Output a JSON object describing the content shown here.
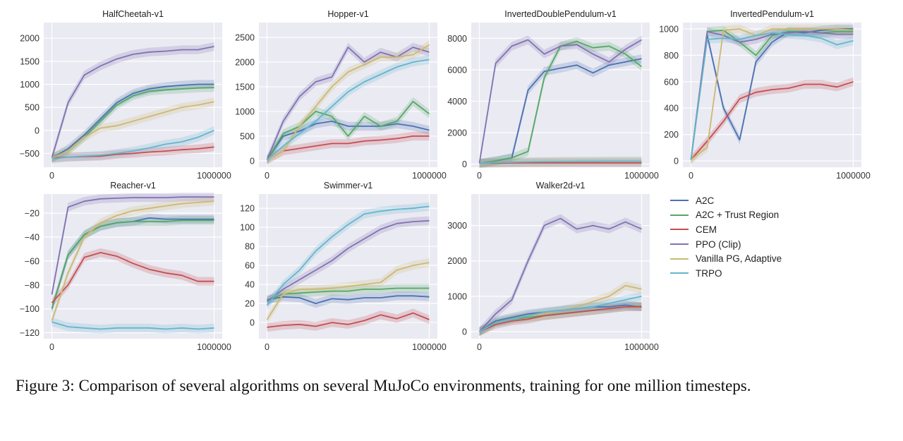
{
  "caption": "Figure 3:  Comparison of several algorithms on several MuJoCo environments, training for one million timesteps.",
  "legend": [
    {
      "name": "A2C",
      "color": "#4c72b0"
    },
    {
      "name": "A2C + Trust Region",
      "color": "#55a868"
    },
    {
      "name": "CEM",
      "color": "#c44e52"
    },
    {
      "name": "PPO (Clip)",
      "color": "#8172b2"
    },
    {
      "name": "Vanilla PG, Adaptive",
      "color": "#ccb974"
    },
    {
      "name": "TRPO",
      "color": "#64b5cd"
    }
  ],
  "chart_data": [
    {
      "type": "line",
      "title": "HalfCheetah-v1",
      "xlim": [
        -50000,
        1050000
      ],
      "ylim": [
        -800,
        2340
      ],
      "xticks": [
        0,
        1000000
      ],
      "xtick_labels": [
        "0",
        "1000000"
      ],
      "yticks": [
        -500,
        0,
        500,
        1000,
        1500,
        2000
      ],
      "ytick_labels": [
        "−500",
        "0",
        "500",
        "1000",
        "1500",
        "2000"
      ],
      "grid": true,
      "x": [
        0,
        100000,
        200000,
        300000,
        400000,
        500000,
        600000,
        700000,
        800000,
        900000,
        1000000
      ],
      "series": [
        {
          "name": "A2C",
          "values": [
            -600,
            -400,
            -100,
            250,
            600,
            800,
            900,
            950,
            980,
            1000,
            1000
          ]
        },
        {
          "name": "A2C + Trust Region",
          "values": [
            -600,
            -450,
            -150,
            200,
            550,
            750,
            850,
            880,
            900,
            920,
            930
          ]
        },
        {
          "name": "CEM",
          "values": [
            -600,
            -580,
            -570,
            -560,
            -520,
            -500,
            -470,
            -450,
            -420,
            -400,
            -360
          ]
        },
        {
          "name": "PPO (Clip)",
          "values": [
            -600,
            600,
            1200,
            1400,
            1550,
            1650,
            1700,
            1720,
            1750,
            1750,
            1820
          ]
        },
        {
          "name": "Vanilla PG, Adaptive",
          "values": [
            -600,
            -450,
            -150,
            50,
            100,
            200,
            300,
            400,
            500,
            550,
            620
          ]
        },
        {
          "name": "TRPO",
          "values": [
            -620,
            -580,
            -560,
            -540,
            -500,
            -450,
            -380,
            -300,
            -250,
            -150,
            0
          ]
        }
      ]
    },
    {
      "type": "line",
      "title": "Hopper-v1",
      "xlim": [
        -50000,
        1050000
      ],
      "ylim": [
        -130,
        2800
      ],
      "xticks": [
        0,
        1000000
      ],
      "xtick_labels": [
        "0",
        "1000000"
      ],
      "yticks": [
        0,
        500,
        1000,
        1500,
        2000,
        2500
      ],
      "ytick_labels": [
        "0",
        "500",
        "1000",
        "1500",
        "2000",
        "2500"
      ],
      "grid": true,
      "x": [
        0,
        100000,
        200000,
        300000,
        400000,
        500000,
        600000,
        700000,
        800000,
        900000,
        1000000
      ],
      "series": [
        {
          "name": "A2C",
          "values": [
            20,
            500,
            600,
            750,
            800,
            700,
            700,
            700,
            750,
            700,
            620
          ]
        },
        {
          "name": "A2C + Trust Region",
          "values": [
            20,
            550,
            700,
            1000,
            900,
            500,
            900,
            700,
            800,
            1200,
            950
          ]
        },
        {
          "name": "CEM",
          "values": [
            20,
            200,
            250,
            300,
            350,
            350,
            400,
            420,
            450,
            500,
            500
          ]
        },
        {
          "name": "PPO (Clip)",
          "values": [
            20,
            800,
            1300,
            1600,
            1700,
            2300,
            2000,
            2200,
            2100,
            2300,
            2200
          ]
        },
        {
          "name": "Vanilla PG, Adaptive",
          "values": [
            20,
            200,
            700,
            1100,
            1500,
            1800,
            1950,
            2100,
            2100,
            2150,
            2350
          ]
        },
        {
          "name": "TRPO",
          "values": [
            20,
            300,
            550,
            800,
            1100,
            1400,
            1600,
            1750,
            1900,
            2000,
            2050
          ]
        }
      ]
    },
    {
      "type": "line",
      "title": "InvertedDoublePendulum-v1",
      "xlim": [
        -50000,
        1050000
      ],
      "ylim": [
        -200,
        9000
      ],
      "xticks": [
        0,
        1000000
      ],
      "xtick_labels": [
        "0",
        "1000000"
      ],
      "yticks": [
        0,
        2000,
        4000,
        6000,
        8000
      ],
      "ytick_labels": [
        "0",
        "2000",
        "4000",
        "6000",
        "8000"
      ],
      "grid": true,
      "x": [
        0,
        100000,
        200000,
        300000,
        400000,
        500000,
        600000,
        700000,
        800000,
        900000,
        1000000
      ],
      "series": [
        {
          "name": "A2C",
          "values": [
            50,
            200,
            400,
            4700,
            5900,
            6100,
            6300,
            5800,
            6300,
            6500,
            6700
          ]
        },
        {
          "name": "A2C + Trust Region",
          "values": [
            50,
            200,
            400,
            800,
            5500,
            7500,
            7800,
            7400,
            7500,
            7000,
            6200
          ]
        },
        {
          "name": "CEM",
          "values": [
            50,
            60,
            70,
            80,
            80,
            80,
            80,
            80,
            80,
            80,
            80
          ]
        },
        {
          "name": "PPO (Clip)",
          "values": [
            50,
            6400,
            7500,
            7900,
            7000,
            7500,
            7600,
            7000,
            6500,
            7300,
            7900
          ]
        },
        {
          "name": "Vanilla PG, Adaptive",
          "values": [
            50,
            100,
            120,
            150,
            170,
            180,
            190,
            190,
            200,
            200,
            200
          ]
        },
        {
          "name": "TRPO",
          "values": [
            50,
            100,
            120,
            140,
            150,
            160,
            170,
            170,
            180,
            180,
            180
          ]
        }
      ]
    },
    {
      "type": "line",
      "title": "InvertedPendulum-v1",
      "xlim": [
        -50000,
        1050000
      ],
      "ylim": [
        -48,
        1048
      ],
      "xticks": [
        0,
        1000000
      ],
      "xtick_labels": [
        "0",
        "1000000"
      ],
      "yticks": [
        0,
        200,
        400,
        600,
        800,
        1000
      ],
      "ytick_labels": [
        "0",
        "200",
        "400",
        "600",
        "800",
        "1000"
      ],
      "grid": true,
      "x": [
        0,
        100000,
        200000,
        300000,
        400000,
        500000,
        600000,
        700000,
        800000,
        900000,
        1000000
      ],
      "series": [
        {
          "name": "A2C",
          "values": [
            10,
            950,
            400,
            160,
            750,
            900,
            980,
            970,
            990,
            1000,
            1000
          ]
        },
        {
          "name": "A2C + Trust Region",
          "values": [
            10,
            980,
            990,
            900,
            800,
            950,
            980,
            980,
            970,
            980,
            980
          ]
        },
        {
          "name": "CEM",
          "values": [
            10,
            150,
            300,
            470,
            520,
            540,
            550,
            580,
            580,
            560,
            600
          ]
        },
        {
          "name": "PPO (Clip)",
          "values": [
            10,
            980,
            950,
            900,
            920,
            960,
            970,
            980,
            970,
            960,
            960
          ]
        },
        {
          "name": "Vanilla PG, Adaptive",
          "values": [
            10,
            100,
            990,
            1000,
            950,
            1000,
            1000,
            1000,
            1000,
            1000,
            990
          ]
        },
        {
          "name": "TRPO",
          "values": [
            10,
            920,
            930,
            920,
            950,
            970,
            960,
            950,
            930,
            880,
            910
          ]
        }
      ]
    },
    {
      "type": "line",
      "title": "Reacher-v1",
      "xlim": [
        -50000,
        1050000
      ],
      "ylim": [
        -125,
        -4
      ],
      "xticks": [
        0,
        1000000
      ],
      "xtick_labels": [
        "0",
        "1000000"
      ],
      "yticks": [
        -120,
        -100,
        -80,
        -60,
        -40,
        -20
      ],
      "ytick_labels": [
        "−120",
        "−100",
        "−80",
        "−60",
        "−40",
        "−20"
      ],
      "grid": true,
      "x": [
        0,
        100000,
        200000,
        300000,
        400000,
        500000,
        600000,
        700000,
        800000,
        900000,
        1000000
      ],
      "series": [
        {
          "name": "A2C",
          "values": [
            -100,
            -55,
            -38,
            -31,
            -28,
            -27,
            -24,
            -25,
            -25,
            -25,
            -25
          ]
        },
        {
          "name": "A2C + Trust Region",
          "values": [
            -100,
            -55,
            -38,
            -31,
            -28,
            -27,
            -27,
            -27,
            -26,
            -26,
            -26
          ]
        },
        {
          "name": "CEM",
          "values": [
            -95,
            -80,
            -57,
            -53,
            -56,
            -62,
            -67,
            -70,
            -72,
            -77,
            -77
          ]
        },
        {
          "name": "PPO (Clip)",
          "values": [
            -88,
            -15,
            -10,
            -8,
            -7.5,
            -7,
            -7,
            -7,
            -6.5,
            -6.5,
            -6.5
          ]
        },
        {
          "name": "Vanilla PG, Adaptive",
          "values": [
            -110,
            -70,
            -40,
            -28,
            -22,
            -18,
            -16,
            -14,
            -12,
            -11,
            -10
          ]
        },
        {
          "name": "TRPO",
          "values": [
            -111,
            -115,
            -116,
            -117,
            -116,
            -116,
            -116,
            -117,
            -116,
            -117,
            -116
          ]
        }
      ]
    },
    {
      "type": "line",
      "title": "Swimmer-v1",
      "xlim": [
        -50000,
        1050000
      ],
      "ylim": [
        -17,
        135
      ],
      "xticks": [
        0,
        1000000
      ],
      "xtick_labels": [
        "0",
        "1000000"
      ],
      "yticks": [
        0,
        20,
        40,
        60,
        80,
        100,
        120
      ],
      "ytick_labels": [
        "0",
        "20",
        "40",
        "60",
        "80",
        "100",
        "120"
      ],
      "grid": true,
      "x": [
        0,
        100000,
        200000,
        300000,
        400000,
        500000,
        600000,
        700000,
        800000,
        900000,
        1000000
      ],
      "series": [
        {
          "name": "A2C",
          "values": [
            24,
            27,
            26,
            20,
            25,
            24,
            26,
            26,
            28,
            28,
            27
          ]
        },
        {
          "name": "A2C + Trust Region",
          "values": [
            23,
            30,
            31,
            32,
            33,
            33,
            35,
            35,
            36,
            36,
            36
          ]
        },
        {
          "name": "CEM",
          "values": [
            -5,
            -3,
            -2,
            -4,
            0,
            -2,
            2,
            8,
            4,
            10,
            3
          ]
        },
        {
          "name": "PPO (Clip)",
          "values": [
            22,
            35,
            45,
            55,
            65,
            78,
            88,
            98,
            104,
            106,
            107
          ]
        },
        {
          "name": "Vanilla PG, Adaptive",
          "values": [
            3,
            30,
            35,
            35,
            36,
            38,
            40,
            42,
            55,
            60,
            63
          ]
        },
        {
          "name": "TRPO",
          "values": [
            18,
            40,
            55,
            75,
            90,
            103,
            114,
            117,
            119,
            120,
            122
          ]
        }
      ]
    },
    {
      "type": "line",
      "title": "Walker2d-v1",
      "xlim": [
        -50000,
        1050000
      ],
      "ylim": [
        -200,
        3890
      ],
      "xticks": [
        0,
        1000000
      ],
      "xtick_labels": [
        "0",
        "1000000"
      ],
      "yticks": [
        0,
        1000,
        2000,
        3000
      ],
      "ytick_labels": [
        "0",
        "1000",
        "2000",
        "3000"
      ],
      "grid": true,
      "x": [
        0,
        100000,
        200000,
        300000,
        400000,
        500000,
        600000,
        700000,
        800000,
        900000,
        1000000
      ],
      "series": [
        {
          "name": "A2C",
          "values": [
            0,
            300,
            400,
            500,
            550,
            600,
            650,
            700,
            700,
            750,
            700
          ]
        },
        {
          "name": "A2C + Trust Region",
          "values": [
            0,
            250,
            350,
            400,
            450,
            500,
            550,
            600,
            650,
            700,
            720
          ]
        },
        {
          "name": "CEM",
          "values": [
            0,
            200,
            300,
            350,
            450,
            500,
            550,
            600,
            650,
            700,
            700
          ]
        },
        {
          "name": "PPO (Clip)",
          "values": [
            0,
            500,
            900,
            2000,
            3000,
            3200,
            2900,
            3000,
            2900,
            3100,
            2900
          ]
        },
        {
          "name": "Vanilla PG, Adaptive",
          "values": [
            0,
            250,
            350,
            450,
            500,
            600,
            700,
            850,
            1000,
            1300,
            1200
          ]
        },
        {
          "name": "TRPO",
          "values": [
            0,
            250,
            350,
            450,
            550,
            600,
            650,
            700,
            800,
            900,
            1000
          ]
        }
      ]
    }
  ]
}
